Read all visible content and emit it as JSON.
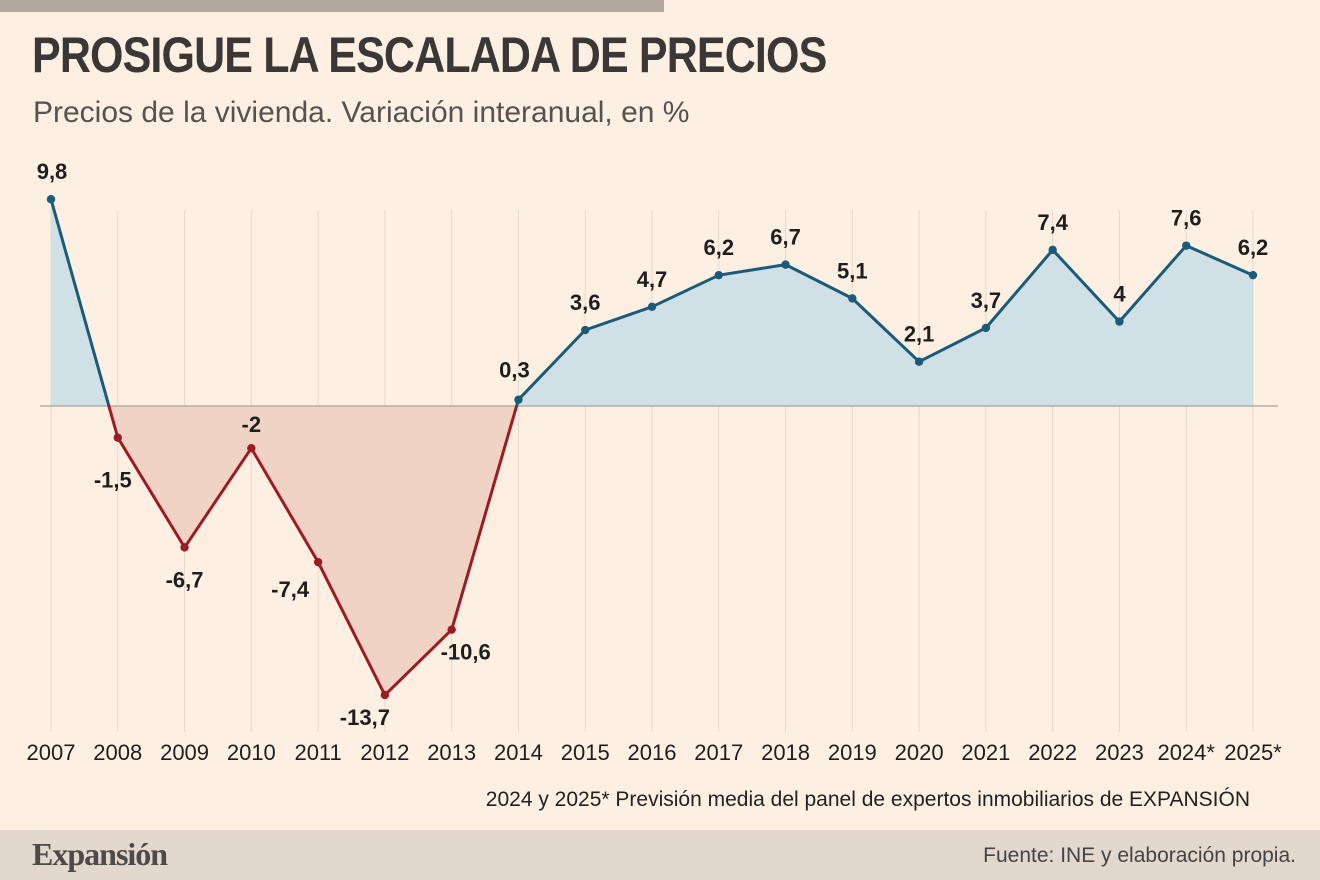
{
  "header": {
    "title": "PROSIGUE LA ESCALADA DE PRECIOS",
    "subtitle": "Precios de la vivienda. Variación interanual, en %"
  },
  "footnote": "2024 y 2025* Previsión media del panel de expertos inmobiliarios de EXPANSIÓN",
  "footer": {
    "brand": "Expansión",
    "source": "Fuente: INE y elaboración propia."
  },
  "colors": {
    "positive_line": "#1b5a78",
    "positive_fill": "#cfe0e6",
    "negative_line": "#9b1c22",
    "negative_fill": "#f1d3c6",
    "background": "#fdf0e2",
    "gridline": "#e3d9ce",
    "zero_line": "#a8a29b"
  },
  "chart_data": {
    "type": "area",
    "title": "PROSIGUE LA ESCALADA DE PRECIOS",
    "subtitle": "Precios de la vivienda. Variación interanual, en %",
    "categories": [
      "2007",
      "2008",
      "2009",
      "2010",
      "2011",
      "2012",
      "2013",
      "2014",
      "2015",
      "2016",
      "2017",
      "2018",
      "2019",
      "2020",
      "2021",
      "2022",
      "2023",
      "2024*",
      "2025*"
    ],
    "values": [
      9.8,
      -1.5,
      -6.7,
      -2,
      -7.4,
      -13.7,
      -10.6,
      0.3,
      3.6,
      4.7,
      6.2,
      6.7,
      5.1,
      2.1,
      3.7,
      7.4,
      4,
      7.6,
      6.2
    ],
    "value_labels": [
      "9,8",
      "-1,5",
      "-6,7",
      "-2",
      "-7,4",
      "-13,7",
      "-10,6",
      "0,3",
      "3,6",
      "4,7",
      "6,2",
      "6,7",
      "5,1",
      "2,1",
      "3,7",
      "7,4",
      "4",
      "7,6",
      "6,2"
    ],
    "ylim": [
      -14,
      10
    ],
    "xlabel": "",
    "ylabel": "",
    "grid": "vertical",
    "legend": "none"
  }
}
